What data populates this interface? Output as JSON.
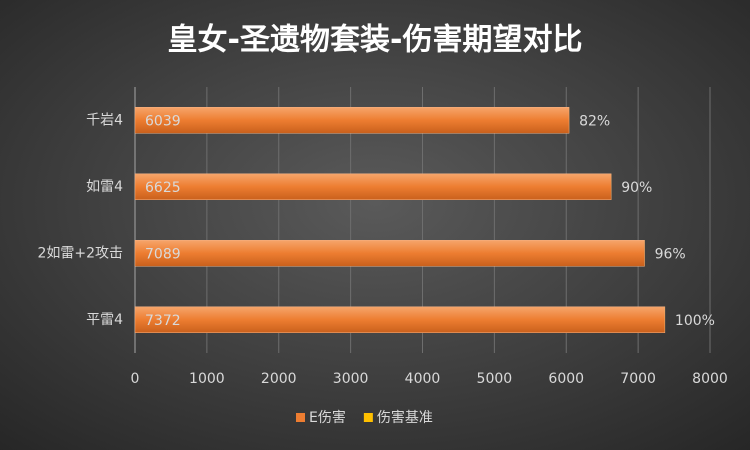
{
  "chart_data": {
    "type": "stacked-barh",
    "title": "皇女-圣遗物套装-伤害期望对比",
    "categories": [
      "千岩4",
      "如雷4",
      "2如雷+2攻击",
      "平雷4"
    ],
    "series": [
      {
        "name": "E伤害",
        "color": "#ed7d31",
        "values": [
          6039,
          6625,
          7089,
          7372
        ]
      },
      {
        "name": "伤害基准",
        "color": "#ffc000",
        "values": [
          0.82,
          0.9,
          0.96,
          1.0
        ],
        "value_labels": [
          "82%",
          "90%",
          "96%",
          "100%"
        ]
      }
    ],
    "xlim": [
      0,
      8000
    ],
    "xticks": [
      0,
      1000,
      2000,
      3000,
      4000,
      5000,
      6000,
      7000,
      8000
    ],
    "grid": true,
    "legend": "bottom"
  }
}
